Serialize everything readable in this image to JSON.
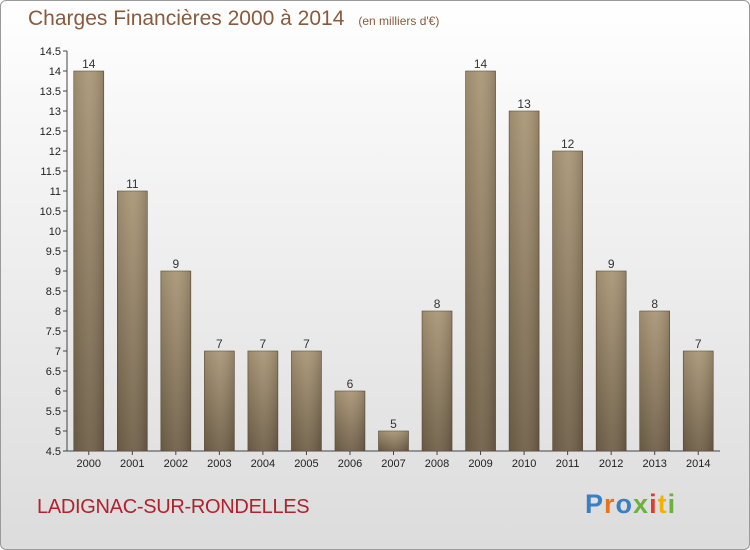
{
  "title": "Charges Financières 2000 à 2014",
  "unit_note": "(en milliers d'€)",
  "commune": "LADIGNAC-SUR-RONDELLES",
  "brand": {
    "letters": [
      "P",
      "r",
      "o",
      "x",
      "i",
      "t",
      "i"
    ],
    "colors": [
      "#3a7fc4",
      "#e8731a",
      "#3a7fc4",
      "#6ab23e",
      "#e23a2f",
      "#f0b400",
      "#6ab23e"
    ]
  },
  "colors": {
    "bar_light": "#a99676",
    "bar_dark": "#6f5f48",
    "title": "#8a5a3c",
    "commune": "#b0222d"
  },
  "chart_data": {
    "type": "bar",
    "title": "Charges Financières 2000 à 2014",
    "subtitle": "(en milliers d'€)",
    "categories": [
      "2000",
      "2001",
      "2002",
      "2003",
      "2004",
      "2005",
      "2006",
      "2007",
      "2008",
      "2009",
      "2010",
      "2011",
      "2012",
      "2013",
      "2014"
    ],
    "values": [
      14,
      11,
      9,
      7,
      7,
      7,
      6,
      5,
      8,
      14,
      13,
      12,
      9,
      8,
      7
    ],
    "ylim": [
      4.5,
      14.5
    ],
    "yticks": [
      4.5,
      5,
      5.5,
      6,
      6.5,
      7,
      7.5,
      8,
      8.5,
      9,
      9.5,
      10,
      10.5,
      11,
      11.5,
      12,
      12.5,
      13,
      13.5,
      14,
      14.5
    ],
    "ytick_labels": [
      "4.5",
      "5",
      "5.5",
      "6",
      "6.5",
      "7",
      "7.5",
      "8",
      "8.5",
      "9",
      "9.5",
      "10",
      "10.5",
      "11",
      "11.5",
      "12",
      "12.5",
      "13",
      "13.5",
      "14",
      "14.5"
    ],
    "grid": false,
    "data_labels": true
  }
}
